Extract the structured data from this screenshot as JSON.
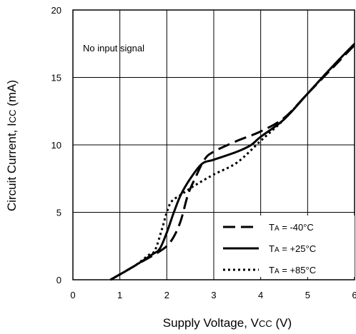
{
  "chart_data": {
    "type": "line",
    "title": "",
    "annotation": "No input signal",
    "xlabel": {
      "main": "Supply Voltage, V",
      "sub": "CC",
      "unit": " (V)"
    },
    "ylabel": {
      "main": "Circuit Current, I",
      "sub": "CC",
      "unit": " (mA)"
    },
    "xlim": [
      0,
      6
    ],
    "ylim": [
      0,
      20
    ],
    "xticks": [
      "0",
      "1",
      "2",
      "3",
      "4",
      "5",
      "6"
    ],
    "yticks": [
      "0",
      "5",
      "10",
      "15",
      "20"
    ],
    "grid": true,
    "legend_position": "bottom-right",
    "series": [
      {
        "name": "-40°C",
        "style": "dashed",
        "x": [
          0.8,
          1.4,
          1.8,
          2.0,
          2.15,
          2.3,
          2.45,
          2.6,
          2.8,
          3.0,
          3.5,
          4.0,
          4.5,
          5.0,
          5.5,
          6.0
        ],
        "y": [
          0.0,
          1.2,
          2.0,
          2.5,
          3.2,
          4.4,
          6.3,
          7.5,
          8.9,
          9.5,
          10.3,
          11.0,
          12.0,
          13.8,
          15.6,
          17.4
        ]
      },
      {
        "name": "+25°C",
        "style": "solid",
        "x": [
          0.8,
          1.3,
          1.7,
          1.85,
          2.0,
          2.15,
          2.3,
          2.5,
          2.75,
          3.0,
          3.5,
          3.8,
          4.0,
          4.5,
          5.0,
          5.5,
          6.0
        ],
        "y": [
          0.0,
          1.0,
          1.9,
          2.3,
          3.5,
          5.0,
          6.3,
          7.5,
          8.6,
          8.9,
          9.5,
          10.0,
          10.6,
          11.9,
          13.8,
          15.7,
          17.5
        ]
      },
      {
        "name": "+85°C",
        "style": "dotted",
        "x": [
          0.8,
          1.3,
          1.6,
          1.75,
          1.9,
          2.0,
          2.1,
          2.3,
          2.6,
          3.0,
          3.5,
          4.0,
          4.5,
          5.0,
          5.5,
          6.0
        ],
        "y": [
          0.0,
          1.0,
          1.8,
          2.2,
          3.8,
          5.0,
          5.8,
          6.3,
          7.0,
          7.8,
          8.7,
          10.3,
          11.9,
          13.8,
          15.7,
          17.5
        ]
      }
    ],
    "legend": [
      {
        "prefix": "T",
        "sub": "A",
        "label": " = -40°C",
        "style": "dashed"
      },
      {
        "prefix": "T",
        "sub": "A",
        "label": " = +25°C",
        "style": "solid"
      },
      {
        "prefix": "T",
        "sub": "A",
        "label": " = +85°C",
        "style": "dotted"
      }
    ]
  }
}
